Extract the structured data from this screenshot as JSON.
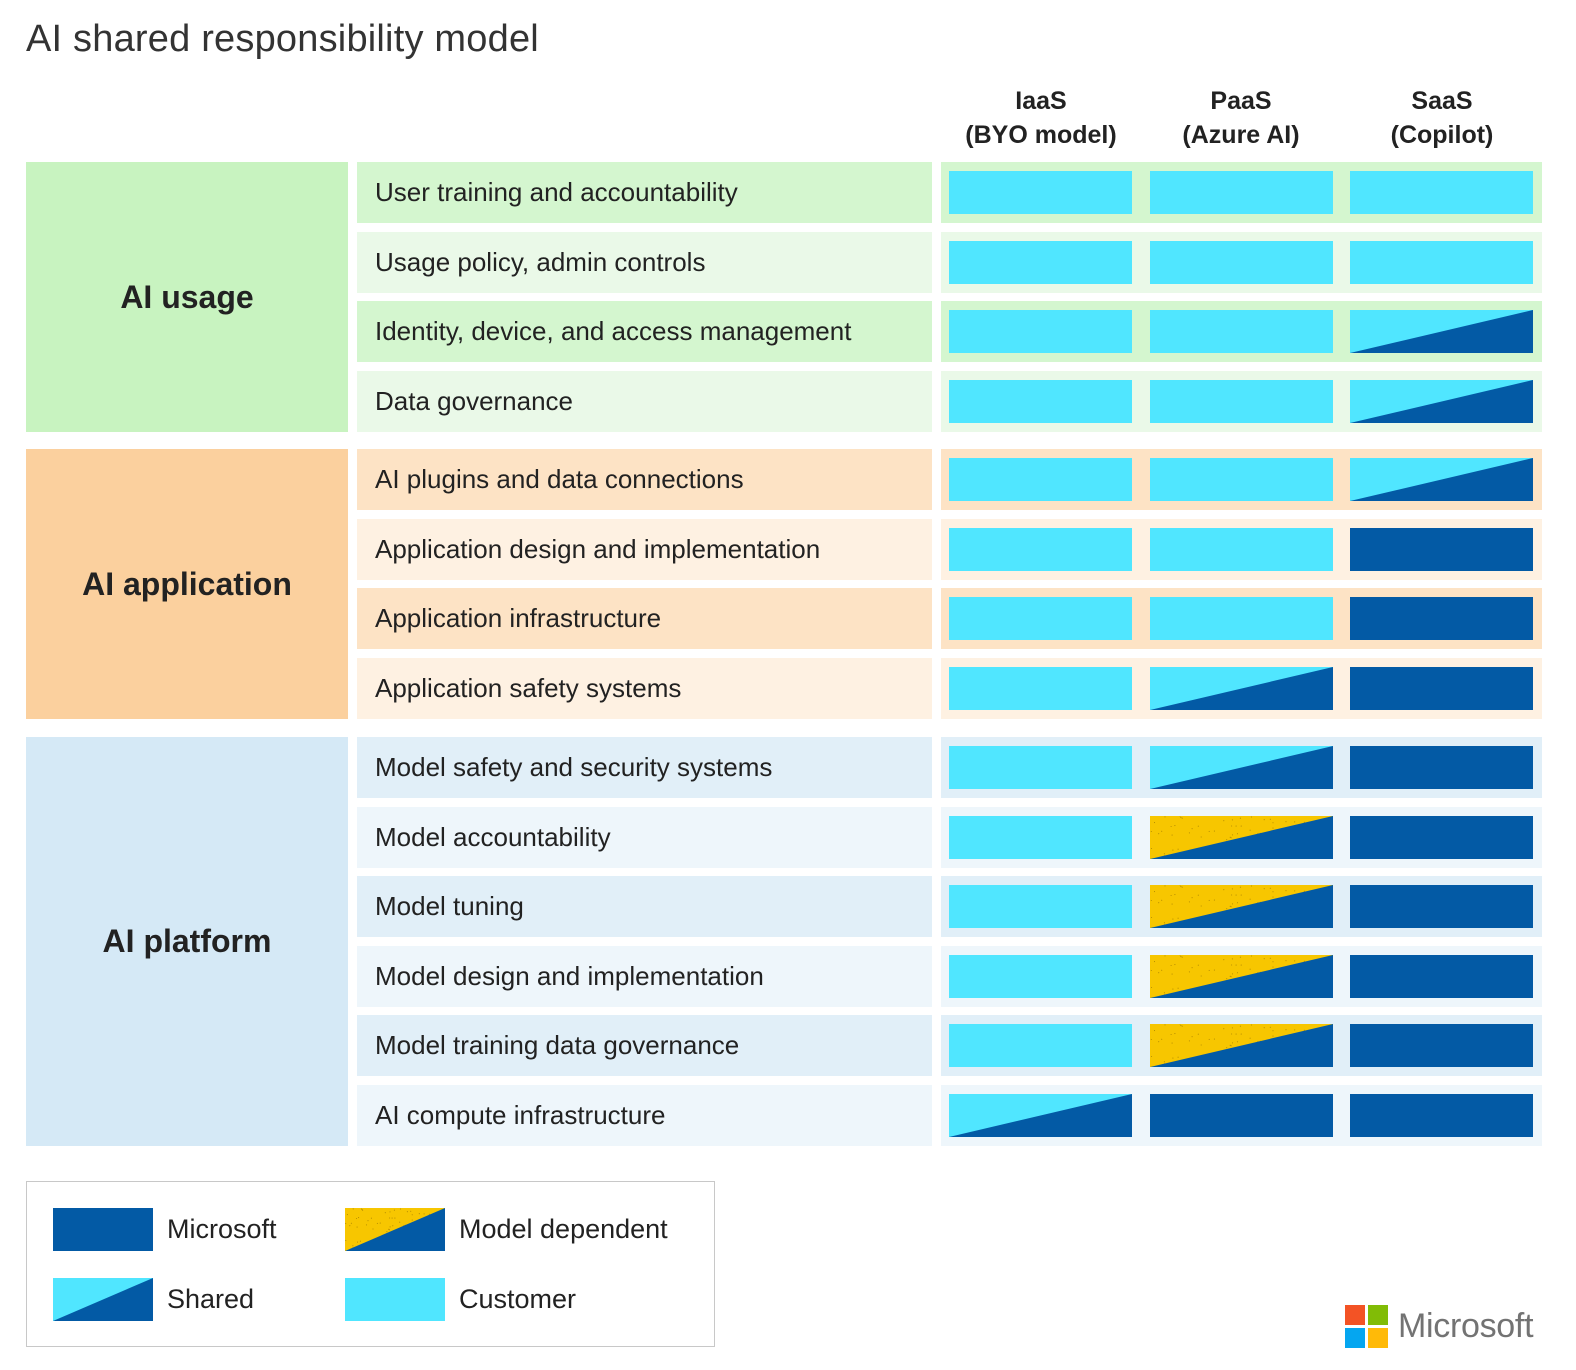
{
  "title": "AI shared responsibility model",
  "columns": [
    {
      "line1": "IaaS",
      "line2": "(BYO model)"
    },
    {
      "line1": "PaaS",
      "line2": "(Azure AI)"
    },
    {
      "line1": "SaaS",
      "line2": "(Copilot)"
    }
  ],
  "groups": [
    {
      "name": "AI usage",
      "colors": {
        "box": "#c8f3c0",
        "rowA": "#d4f6cf",
        "rowB": "#eaf9e8"
      },
      "rows": [
        {
          "label": "User training and accountability",
          "cells": [
            "customer",
            "customer",
            "customer"
          ]
        },
        {
          "label": "Usage policy, admin controls",
          "cells": [
            "customer",
            "customer",
            "customer"
          ]
        },
        {
          "label": "Identity, device, and access management",
          "cells": [
            "customer",
            "customer",
            "shared"
          ]
        },
        {
          "label": "Data governance",
          "cells": [
            "customer",
            "customer",
            "shared"
          ]
        }
      ]
    },
    {
      "name": "AI application",
      "colors": {
        "box": "#fbd09e",
        "rowA": "#fde3c5",
        "rowB": "#fef1e2"
      },
      "rows": [
        {
          "label": "AI plugins and data connections",
          "cells": [
            "customer",
            "customer",
            "shared"
          ]
        },
        {
          "label": "Application design and implementation",
          "cells": [
            "customer",
            "customer",
            "microsoft"
          ]
        },
        {
          "label": "Application infrastructure",
          "cells": [
            "customer",
            "customer",
            "microsoft"
          ]
        },
        {
          "label": "Application safety systems",
          "cells": [
            "customer",
            "shared",
            "microsoft"
          ]
        }
      ]
    },
    {
      "name": "AI platform",
      "colors": {
        "box": "#d5e9f6",
        "rowA": "#e1eff8",
        "rowB": "#eef6fb"
      },
      "rows": [
        {
          "label": "Model safety and security systems",
          "cells": [
            "customer",
            "shared",
            "microsoft"
          ]
        },
        {
          "label": "Model accountability",
          "cells": [
            "customer",
            "model-dependent",
            "microsoft"
          ]
        },
        {
          "label": "Model tuning",
          "cells": [
            "customer",
            "model-dependent",
            "microsoft"
          ]
        },
        {
          "label": "Model design and implementation",
          "cells": [
            "customer",
            "model-dependent",
            "microsoft"
          ]
        },
        {
          "label": "Model training data governance",
          "cells": [
            "customer",
            "model-dependent",
            "microsoft"
          ]
        },
        {
          "label": "AI compute infrastructure",
          "cells": [
            "shared",
            "microsoft",
            "microsoft"
          ]
        }
      ]
    }
  ],
  "legend": [
    {
      "label": "Microsoft",
      "type": "microsoft"
    },
    {
      "label": "Model dependent",
      "type": "model-dependent"
    },
    {
      "label": "Shared",
      "type": "shared"
    },
    {
      "label": "Customer",
      "type": "customer"
    }
  ],
  "colors": {
    "microsoft": "#035aa5",
    "customer": "#50e6ff",
    "model_dependent": "#f7c600"
  },
  "brand": {
    "wordmark": "Microsoft",
    "logo_colors": [
      "#f35325",
      "#81bc06",
      "#05a6f0",
      "#ffba08"
    ]
  }
}
